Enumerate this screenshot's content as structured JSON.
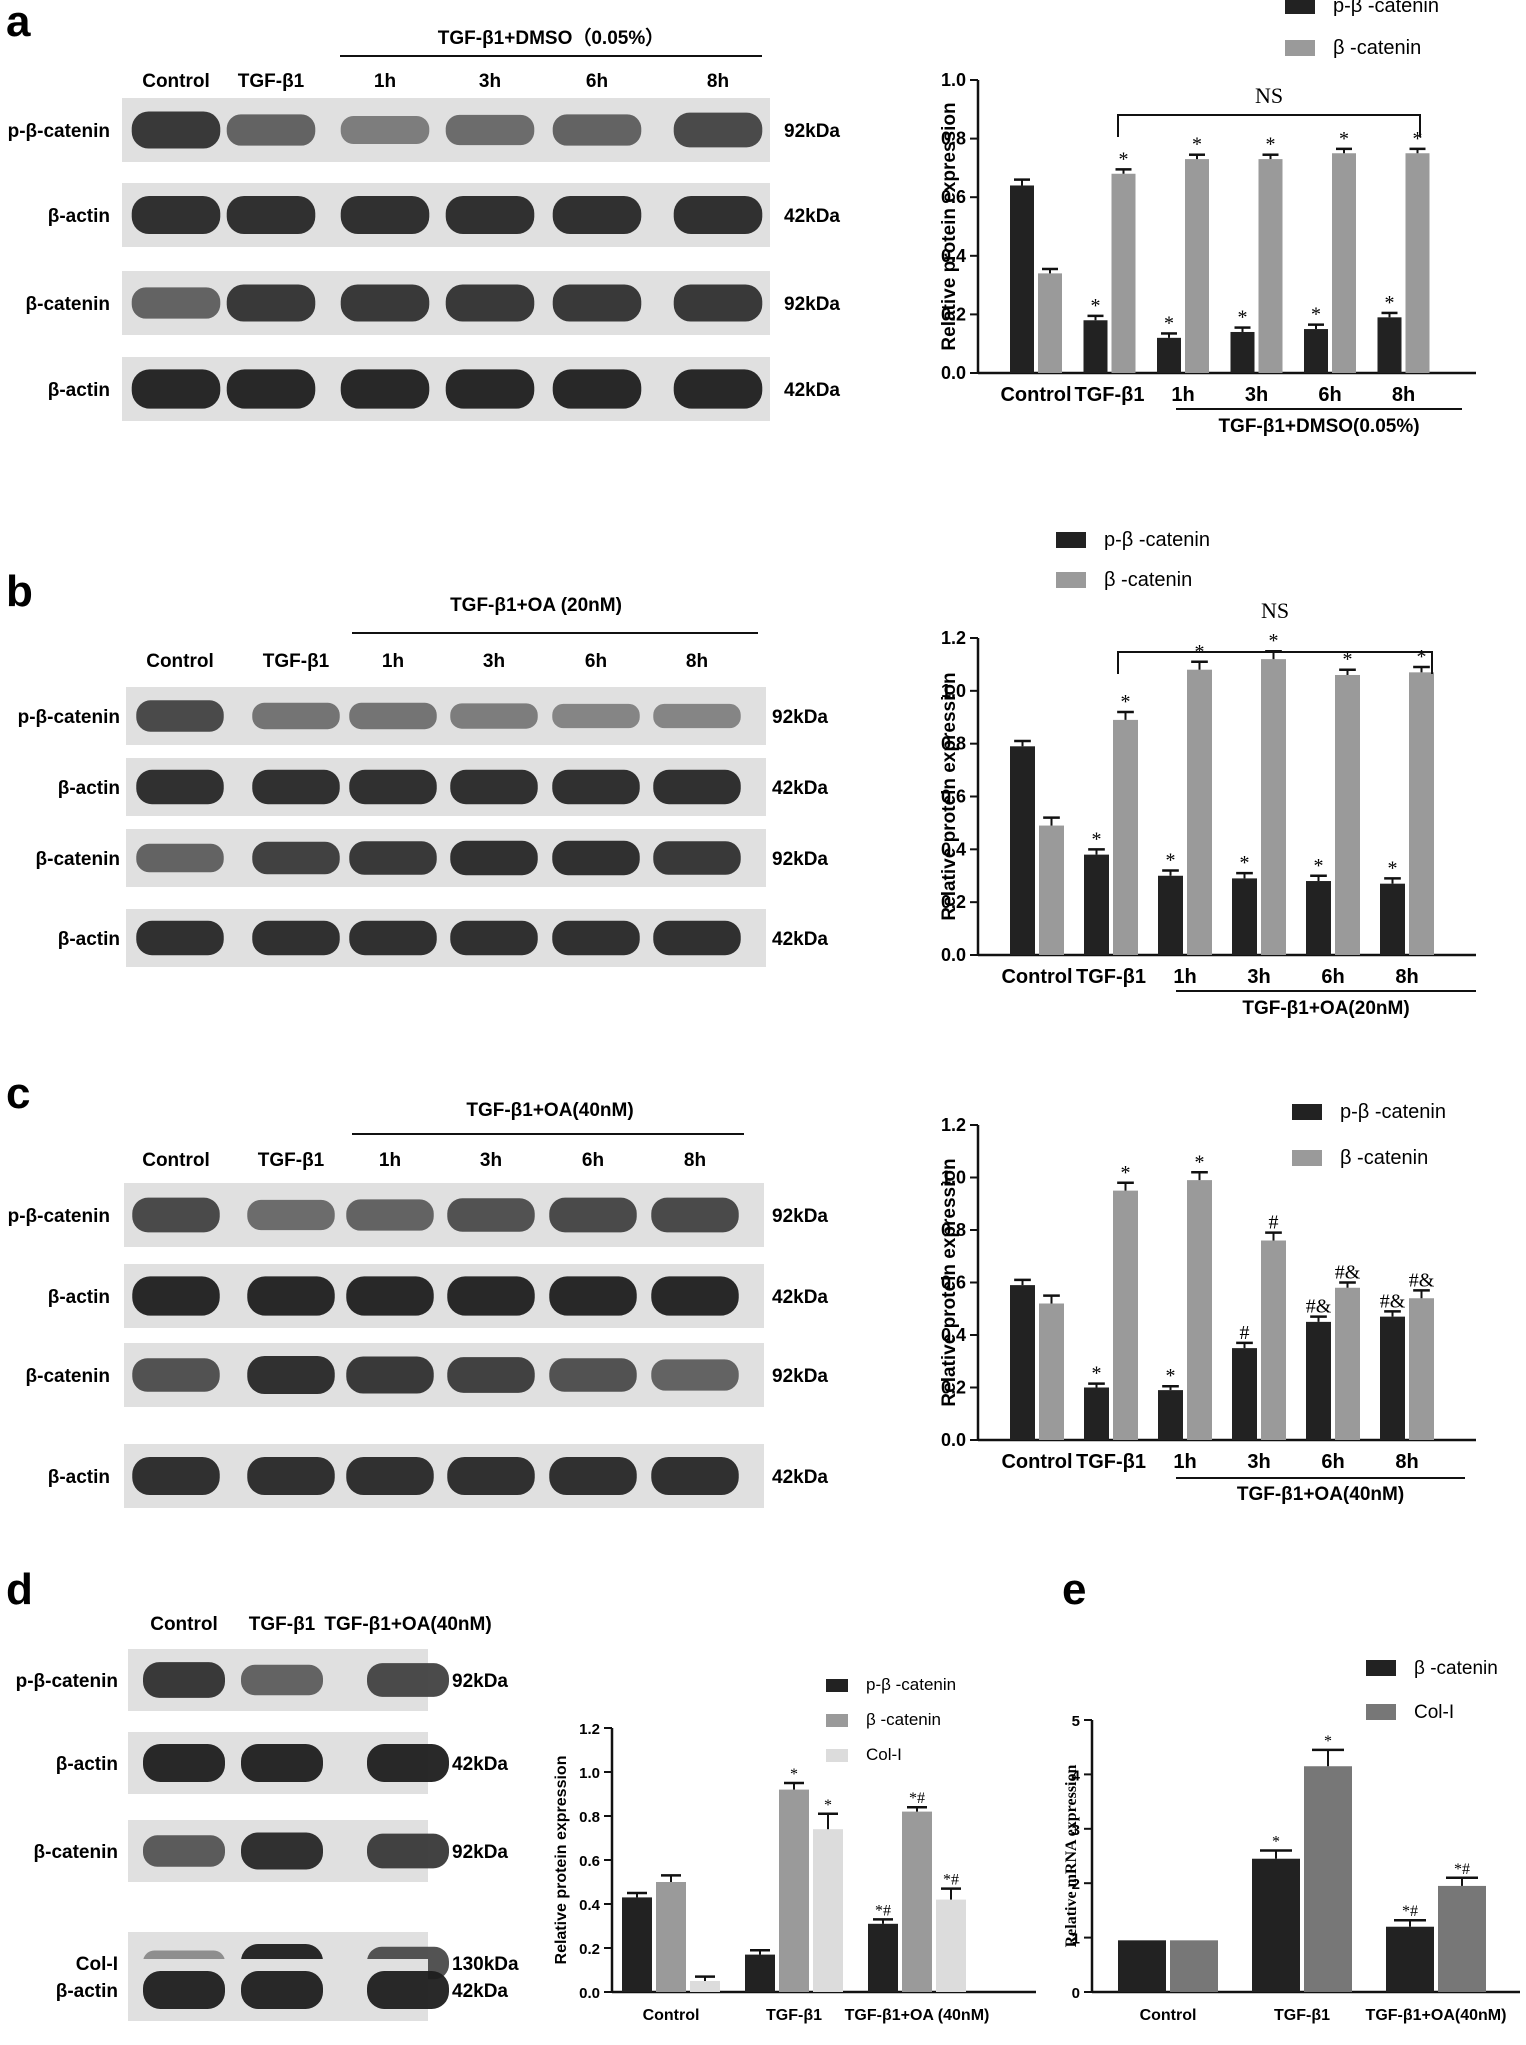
{
  "colors": {
    "dark": "#222222",
    "gray": "#9a9a9a",
    "light": "#dcdcdc",
    "band": "#111111"
  },
  "panels": [
    {
      "letter": "a",
      "blot": {
        "group_label": "TGF-β1+DMSO（0.05%）",
        "lanes": [
          "Control",
          "TGF-β1",
          "1h",
          "3h",
          "6h",
          "8h"
        ],
        "rows": [
          {
            "label": "p-β-catenin",
            "kda": "92kDa",
            "intensity": [
              0.85,
              0.6,
              0.45,
              0.55,
              0.6,
              0.75
            ]
          },
          {
            "label": "β-actin",
            "kda": "42kDa",
            "intensity": [
              0.9,
              0.9,
              0.9,
              0.9,
              0.9,
              0.9
            ]
          },
          {
            "label": "β-catenin",
            "kda": "92kDa",
            "intensity": [
              0.6,
              0.85,
              0.85,
              0.85,
              0.85,
              0.85
            ]
          },
          {
            "label": "β-actin",
            "kda": "42kDa",
            "intensity": [
              0.95,
              0.95,
              0.95,
              0.95,
              0.95,
              0.95
            ]
          }
        ]
      }
    },
    {
      "letter": "b",
      "blot": {
        "group_label": "TGF-β1+OA (20nM)",
        "lanes": [
          "Control",
          "TGF-β1",
          "1h",
          "3h",
          "6h",
          "8h"
        ],
        "rows": [
          {
            "label": "p-β-catenin",
            "kda": "92kDa",
            "intensity": [
              0.75,
              0.5,
              0.5,
              0.45,
              0.4,
              0.4
            ]
          },
          {
            "label": "β-actin",
            "kda": "42kDa",
            "intensity": [
              0.9,
              0.9,
              0.9,
              0.9,
              0.9,
              0.9
            ]
          },
          {
            "label": "β-catenin",
            "kda": "92kDa",
            "intensity": [
              0.6,
              0.8,
              0.85,
              0.9,
              0.9,
              0.85
            ]
          },
          {
            "label": "β-actin",
            "kda": "42kDa",
            "intensity": [
              0.9,
              0.9,
              0.9,
              0.9,
              0.9,
              0.9
            ]
          }
        ]
      }
    },
    {
      "letter": "c",
      "blot": {
        "group_label": "TGF-β1+OA(40nM)",
        "lanes": [
          "Control",
          "TGF-β1",
          "1h",
          "3h",
          "6h",
          "8h"
        ],
        "rows": [
          {
            "label": "p-β-catenin",
            "kda": "92kDa",
            "intensity": [
              0.75,
              0.55,
              0.6,
              0.7,
              0.75,
              0.75
            ]
          },
          {
            "label": "β-actin",
            "kda": "42kDa",
            "intensity": [
              0.95,
              0.95,
              0.95,
              0.95,
              0.95,
              0.95
            ]
          },
          {
            "label": "β-catenin",
            "kda": "92kDa",
            "intensity": [
              0.7,
              0.9,
              0.85,
              0.8,
              0.7,
              0.6
            ]
          },
          {
            "label": "β-actin",
            "kda": "42kDa",
            "intensity": [
              0.9,
              0.9,
              0.9,
              0.9,
              0.9,
              0.9
            ]
          }
        ]
      }
    },
    {
      "letter": "d",
      "blot": {
        "group_label": "",
        "lanes": [
          "Control",
          "TGF-β1",
          "TGF-β1+OA(40nM)"
        ],
        "rows": [
          {
            "label": "p-β-catenin",
            "kda": "92kDa",
            "intensity": [
              0.85,
              0.6,
              0.75
            ]
          },
          {
            "label": "β-actin",
            "kda": "42kDa",
            "intensity": [
              0.95,
              0.95,
              0.95
            ]
          },
          {
            "label": "β-catenin",
            "kda": "92kDa",
            "intensity": [
              0.65,
              0.9,
              0.8
            ]
          },
          {
            "label": "Col-I",
            "kda": "130kDa",
            "intensity": [
              0.35,
              0.95,
              0.7
            ]
          },
          {
            "label": "β-actin",
            "kda": "42kDa",
            "intensity": [
              0.95,
              0.95,
              0.95
            ]
          }
        ]
      }
    },
    {
      "letter": "e"
    }
  ],
  "chart_data": [
    {
      "id": "a",
      "type": "bar",
      "categories": [
        "Control",
        "TGF-β1",
        "1h",
        "3h",
        "6h",
        "8h"
      ],
      "group_label": "TGF-β1+DMSO(0.05%)",
      "ylabel": "Relative protein expression",
      "ylim": [
        0,
        1.0
      ],
      "yticks": [
        "0.0",
        "0.2",
        "0.4",
        "0.6",
        "0.8",
        "1.0"
      ],
      "bracket_label": "NS",
      "series": [
        {
          "name": "p-β -catenin",
          "color": "#222222",
          "values": [
            0.64,
            0.18,
            0.12,
            0.14,
            0.15,
            0.19
          ],
          "errors": [
            0.02,
            0.015,
            0.015,
            0.015,
            0.015,
            0.015
          ],
          "marks": [
            "",
            "*",
            "*",
            "*",
            "*",
            "*"
          ]
        },
        {
          "name": "β -catenin",
          "color": "#9a9a9a",
          "values": [
            0.34,
            0.68,
            0.73,
            0.73,
            0.75,
            0.75
          ],
          "errors": [
            0.015,
            0.015,
            0.015,
            0.015,
            0.015,
            0.015
          ],
          "marks": [
            "",
            "*",
            "*",
            "*",
            "*",
            "*"
          ]
        }
      ]
    },
    {
      "id": "b",
      "type": "bar",
      "categories": [
        "Control",
        "TGF-β1",
        "1h",
        "3h",
        "6h",
        "8h"
      ],
      "group_label": "TGF-β1+OA(20nM)",
      "ylabel": "Relative protein expression",
      "ylim": [
        0,
        1.2
      ],
      "yticks": [
        "0.0",
        "0.2",
        "0.4",
        "0.6",
        "0.8",
        "1.0",
        "1.2"
      ],
      "bracket_label": "NS",
      "series": [
        {
          "name": "p-β -catenin",
          "color": "#222222",
          "values": [
            0.79,
            0.38,
            0.3,
            0.29,
            0.28,
            0.27
          ],
          "errors": [
            0.02,
            0.02,
            0.02,
            0.02,
            0.02,
            0.02
          ],
          "marks": [
            "",
            "*",
            "*",
            "*",
            "*",
            "*"
          ]
        },
        {
          "name": "β -catenin",
          "color": "#9a9a9a",
          "values": [
            0.49,
            0.89,
            1.08,
            1.12,
            1.06,
            1.07
          ],
          "errors": [
            0.03,
            0.03,
            0.03,
            0.03,
            0.02,
            0.02
          ],
          "marks": [
            "",
            "*",
            "*",
            "*",
            "*",
            "*"
          ]
        }
      ]
    },
    {
      "id": "c",
      "type": "bar",
      "categories": [
        "Control",
        "TGF-β1",
        "1h",
        "3h",
        "6h",
        "8h"
      ],
      "group_label": "TGF-β1+OA(40nM)",
      "ylabel": "Relative protein expression",
      "ylim": [
        0,
        1.2
      ],
      "yticks": [
        "0.0",
        "0.2",
        "0.4",
        "0.6",
        "0.8",
        "1.0",
        "1.2"
      ],
      "bracket_label": "",
      "series": [
        {
          "name": "p-β -catenin",
          "color": "#222222",
          "values": [
            0.59,
            0.2,
            0.19,
            0.35,
            0.45,
            0.47
          ],
          "errors": [
            0.02,
            0.015,
            0.015,
            0.02,
            0.02,
            0.02
          ],
          "marks": [
            "",
            "*",
            "*",
            "#",
            "#&",
            "#&"
          ]
        },
        {
          "name": "β -catenin",
          "color": "#9a9a9a",
          "values": [
            0.52,
            0.95,
            0.99,
            0.76,
            0.58,
            0.54
          ],
          "errors": [
            0.03,
            0.03,
            0.03,
            0.03,
            0.02,
            0.03
          ],
          "marks": [
            "",
            "*",
            "*",
            "#",
            "#&",
            "#&"
          ]
        }
      ]
    },
    {
      "id": "d",
      "type": "bar",
      "categories": [
        "Control",
        "TGF-β1",
        "TGF-β1+OA (40nM)"
      ],
      "ylabel": "Relative protein expression",
      "ylim": [
        0,
        1.2
      ],
      "yticks": [
        "0.0",
        "0.2",
        "0.4",
        "0.6",
        "0.8",
        "1.0",
        "1.2"
      ],
      "series": [
        {
          "name": "p-β -catenin",
          "color": "#222222",
          "values": [
            0.43,
            0.17,
            0.31
          ],
          "errors": [
            0.02,
            0.02,
            0.02
          ],
          "marks": [
            "",
            "",
            "*#"
          ]
        },
        {
          "name": "β -catenin",
          "color": "#9a9a9a",
          "values": [
            0.5,
            0.92,
            0.82
          ],
          "errors": [
            0.03,
            0.03,
            0.02
          ],
          "marks": [
            "",
            "*",
            "*#"
          ]
        },
        {
          "name": "Col-I",
          "color": "#dcdcdc",
          "values": [
            0.05,
            0.74,
            0.42
          ],
          "errors": [
            0.02,
            0.07,
            0.05
          ],
          "marks": [
            "",
            "*",
            "*#"
          ]
        }
      ]
    },
    {
      "id": "e",
      "type": "bar",
      "categories": [
        "Control",
        "TGF-β1",
        "TGF-β1+OA(40nM)"
      ],
      "ylabel": "Relative mRNA expression",
      "ylim": [
        0,
        5
      ],
      "yticks": [
        "0",
        "1",
        "2",
        "3",
        "4",
        "5"
      ],
      "series": [
        {
          "name": "β -catenin",
          "color": "#222222",
          "values": [
            0.95,
            2.45,
            1.2
          ],
          "errors": [
            0,
            0.15,
            0.12
          ],
          "marks": [
            "",
            "*",
            "*#"
          ]
        },
        {
          "name": "Col-I",
          "color": "#777777",
          "values": [
            0.95,
            4.15,
            1.95
          ],
          "errors": [
            0,
            0.3,
            0.15
          ],
          "marks": [
            "",
            "*",
            "*#"
          ]
        }
      ]
    }
  ]
}
